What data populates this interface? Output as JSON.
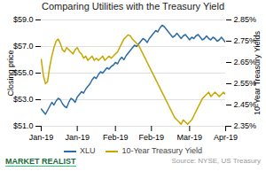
{
  "chart_data": {
    "type": "line",
    "title": "Comparing Utilities with the Treasury Yield",
    "y_label": "Closing price",
    "y2_label": "10-Year Treasury Yields",
    "annotations": [
      "MARKET REALIST",
      "Source: NYSE, US Treasury"
    ],
    "categories": [
      "Jan-19",
      null,
      null,
      null,
      null,
      null,
      null,
      null,
      null,
      null,
      null,
      null,
      null,
      null,
      null,
      null,
      null,
      "Jan-19",
      null,
      null,
      null,
      null,
      null,
      null,
      null,
      null,
      null,
      null,
      null,
      null,
      null,
      null,
      null,
      null,
      null,
      "Feb-19",
      null,
      null,
      null,
      null,
      null,
      null,
      null,
      null,
      null,
      null,
      null,
      null,
      null,
      null,
      null,
      null,
      "Feb-19",
      null,
      null,
      null,
      null,
      null,
      null,
      null,
      null,
      null,
      null,
      null,
      null,
      null,
      null,
      null,
      null,
      null,
      "Mar-19",
      null,
      null,
      null,
      null,
      null,
      null,
      null,
      null,
      null,
      null,
      null,
      null,
      null,
      null,
      null,
      null,
      "Apr-19"
    ],
    "ylim": [
      51.0,
      59.0
    ],
    "yticks": [
      {
        "value": 51.0,
        "label": "$51.0"
      },
      {
        "value": 53.0,
        "label": "$53.0"
      },
      {
        "value": 55.0,
        "label": "$55.0"
      },
      {
        "value": 57.0,
        "label": "$57.0"
      },
      {
        "value": 59.0,
        "label": "$59.0"
      }
    ],
    "y2lim": [
      2.35,
      2.85
    ],
    "y2ticks": [
      {
        "value": 2.35,
        "label": "2.35%"
      },
      {
        "value": 2.45,
        "label": "2.45%"
      },
      {
        "value": 2.55,
        "label": "2.55%"
      },
      {
        "value": 2.65,
        "label": "2.65%"
      },
      {
        "value": 2.75,
        "label": "2.75%"
      },
      {
        "value": 2.85,
        "label": "2.85%"
      }
    ],
    "grid": true,
    "legend": "bottom",
    "series": [
      {
        "name": "XLU",
        "color": "#2E6DA4",
        "values": [
          52.3,
          52.1,
          51.9,
          52.2,
          52.5,
          52.8,
          52.6,
          52.9,
          53.1,
          53.0,
          52.7,
          52.5,
          52.4,
          52.8,
          53.1,
          53.0,
          52.8,
          53.2,
          53.4,
          53.6,
          53.5,
          53.8,
          54.0,
          54.2,
          54.5,
          54.7,
          54.6,
          54.9,
          55.1,
          55.0,
          55.2,
          55.4,
          55.3,
          55.5,
          55.6,
          55.8,
          55.7,
          56.0,
          56.2,
          56.0,
          56.3,
          56.5,
          56.7,
          56.9,
          57.1,
          57.0,
          57.2,
          57.4,
          57.6,
          57.5,
          57.3,
          57.6,
          57.8,
          58.0,
          58.2,
          58.1,
          58.4,
          58.6,
          58.5,
          58.3,
          58.1,
          57.9,
          57.7,
          57.8,
          58.0,
          57.8,
          57.6,
          57.8,
          57.9,
          57.7,
          57.5,
          57.7,
          57.6,
          57.8,
          57.9,
          57.7,
          57.5,
          57.6,
          57.8,
          57.6,
          57.5,
          57.7,
          57.6,
          57.4,
          57.5,
          57.7,
          57.5,
          57.3
        ]
      },
      {
        "name": "10-Year Treasury Yield",
        "color": "#C8A800",
        "axis": "y2",
        "values": [
          2.665,
          2.59,
          2.55,
          2.56,
          2.63,
          2.68,
          2.72,
          2.75,
          2.76,
          2.74,
          2.71,
          2.7,
          2.72,
          2.71,
          2.7,
          2.69,
          2.71,
          2.72,
          2.7,
          2.69,
          2.67,
          2.68,
          2.66,
          2.67,
          2.68,
          2.66,
          2.67,
          2.66,
          2.67,
          2.68,
          2.66,
          2.67,
          2.68,
          2.67,
          2.68,
          2.69,
          2.7,
          2.72,
          2.74,
          2.76,
          2.77,
          2.78,
          2.775,
          2.76,
          2.75,
          2.74,
          2.73,
          2.71,
          2.69,
          2.67,
          2.65,
          2.63,
          2.61,
          2.59,
          2.57,
          2.55,
          2.53,
          2.51,
          2.49,
          2.47,
          2.45,
          2.43,
          2.41,
          2.39,
          2.38,
          2.37,
          2.36,
          2.38,
          2.37,
          2.36,
          2.37,
          2.38,
          2.4,
          2.42,
          2.44,
          2.46,
          2.48,
          2.49,
          2.5,
          2.51,
          2.49,
          2.5,
          2.51,
          2.5,
          2.49,
          2.5,
          2.51,
          2.5
        ]
      }
    ]
  }
}
